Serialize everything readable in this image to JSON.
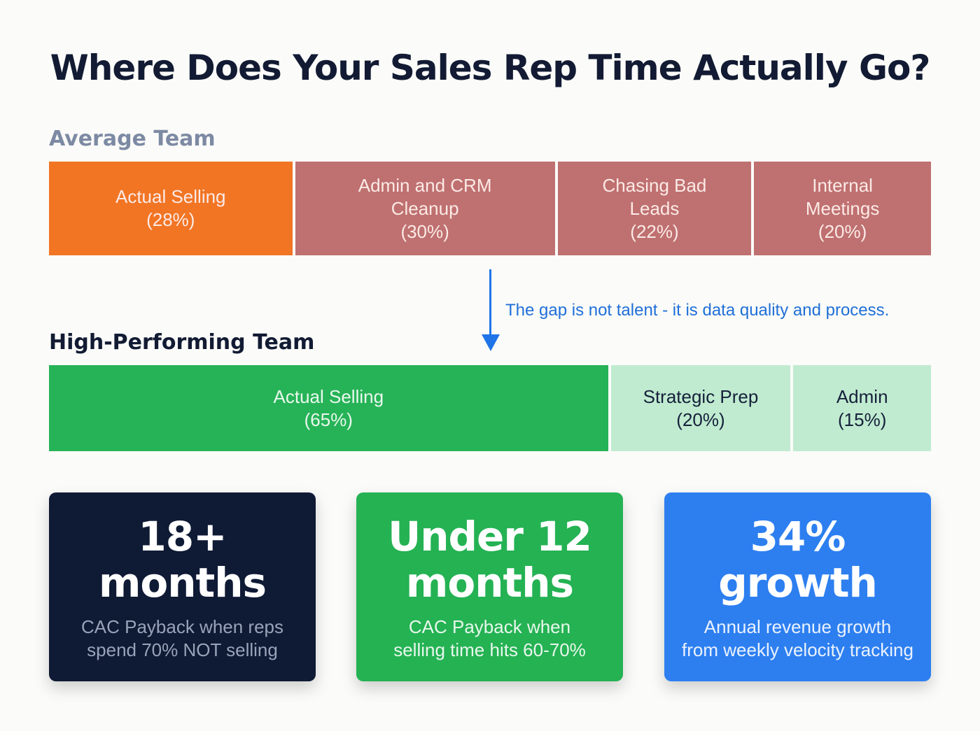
{
  "title": "Where Does Your Sales Rep Time Actually Go?",
  "average_team": {
    "label": "Average Team",
    "segments": [
      {
        "label": "Actual Selling\n(28%)",
        "percent": 28,
        "color": "#f27524"
      },
      {
        "label": "Admin and CRM\nCleanup\n(30%)",
        "percent": 30,
        "color": "#bf7070"
      },
      {
        "label": "Chasing Bad\nLeads\n(22%)",
        "percent": 22,
        "color": "#bf7070"
      },
      {
        "label": "Internal\nMeetings\n(20%)",
        "percent": 20,
        "color": "#bf7070"
      }
    ]
  },
  "gap_note": "The gap is not talent - it is data quality and process.",
  "high_performing_team": {
    "label": "High-Performing Team",
    "segments": [
      {
        "label": "Actual Selling\n(65%)",
        "percent": 65,
        "color": "#26b357"
      },
      {
        "label": "Strategic Prep\n(20%)",
        "percent": 20,
        "color": "#c0ebd0"
      },
      {
        "label": "Admin\n(15%)",
        "percent": 15,
        "color": "#c0ebd0"
      }
    ]
  },
  "cards": [
    {
      "big": "18+\nmonths",
      "sub": "CAC Payback when reps\nspend 70% NOT selling",
      "color": "#0f1a35"
    },
    {
      "big": "Under 12\nmonths",
      "sub": "CAC Payback when\nselling time hits 60-70%",
      "color": "#24b253"
    },
    {
      "big": "34%\ngrowth",
      "sub": "Annual revenue growth\nfrom weekly velocity tracking",
      "color": "#2d7ff0"
    }
  ],
  "chart_data": {
    "type": "bar",
    "title": "Where Does Your Sales Rep Time Actually Go?",
    "orientation": "horizontal-stacked-100",
    "categories": [
      "Average Team",
      "High-Performing Team"
    ],
    "series": [
      {
        "name": "Average Team",
        "segments": [
          "Actual Selling",
          "Admin and CRM Cleanup",
          "Chasing Bad Leads",
          "Internal Meetings"
        ],
        "values": [
          28,
          30,
          22,
          20
        ]
      },
      {
        "name": "High-Performing Team",
        "segments": [
          "Actual Selling",
          "Strategic Prep",
          "Admin"
        ],
        "values": [
          65,
          20,
          15
        ]
      }
    ],
    "annotations": [
      "The gap is not talent - it is data quality and process."
    ],
    "unit": "%",
    "xlim": [
      0,
      100
    ]
  }
}
